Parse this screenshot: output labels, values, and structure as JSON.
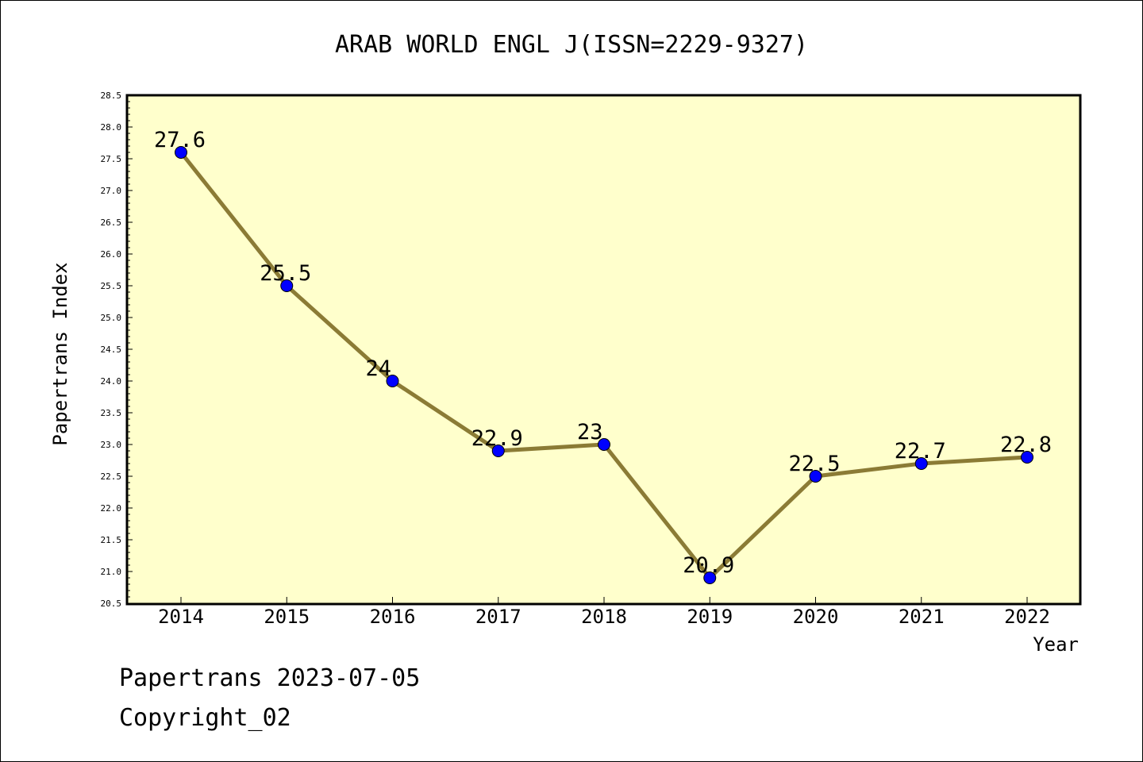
{
  "colors": {
    "plot_background": "#ffffcc",
    "line": "#8b7b35",
    "marker": "#0000ff",
    "axis": "#000000"
  },
  "chart_data": {
    "type": "line",
    "title": "ARAB WORLD ENGL J(ISSN=2229-9327)",
    "xlabel": "Year",
    "ylabel": "Papertrans Index",
    "categories": [
      "2014",
      "2015",
      "2016",
      "2017",
      "2018",
      "2019",
      "2020",
      "2021",
      "2022"
    ],
    "series": [
      {
        "values": [
          27.6,
          25.5,
          24,
          22.9,
          23,
          20.9,
          22.5,
          22.7,
          22.8
        ],
        "labels": [
          "27.6",
          "25.5",
          "24",
          "22.9",
          "23",
          "20.9",
          "22.5",
          "22.7",
          "22.8"
        ]
      }
    ],
    "ylim": [
      20.5,
      28.5
    ],
    "yticks": [
      "20.5",
      "21.0",
      "21.5",
      "22.0",
      "22.5",
      "23.0",
      "23.5",
      "24.0",
      "24.5",
      "25.0",
      "25.5",
      "26.0",
      "26.5",
      "27.0",
      "27.5",
      "28.0",
      "28.5"
    ],
    "grid": false,
    "legend": "none"
  },
  "footer": {
    "line1": "Papertrans 2023-07-05",
    "line2": "Copyright_02"
  }
}
